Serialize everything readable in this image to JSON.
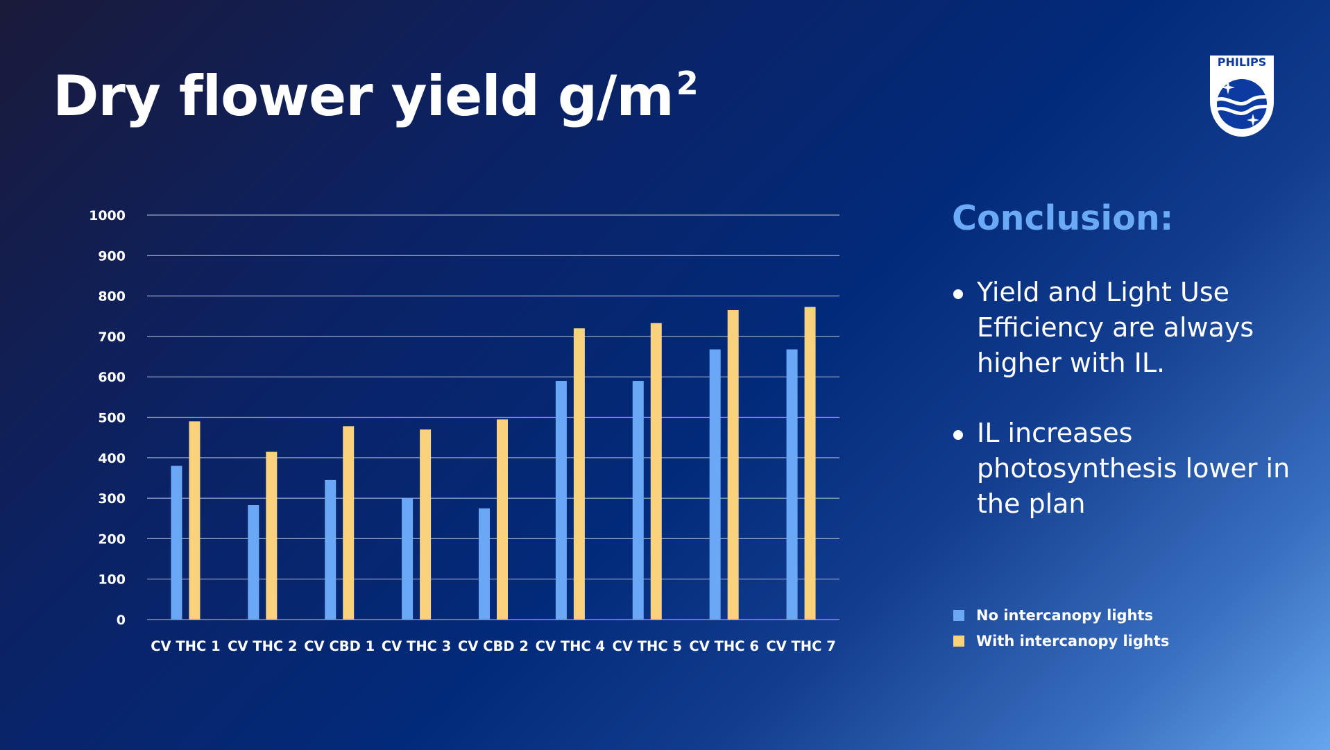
{
  "slide": {
    "title": "Dry flower yield g/m",
    "title_superscript": "2",
    "logo": {
      "wordmark": "PHILIPS",
      "icon": "philips-shield-logo-icon"
    },
    "conclusion": {
      "heading": "Conclusion:",
      "bullets": [
        "Yield and Light Use Efficiency are always higher with IL.",
        "IL increases photosynthesis lower in the plan"
      ]
    },
    "colors": {
      "series_no_il": "#6aa8f5",
      "series_with_il": "#fbd27c",
      "gridline": "#9aa8c8",
      "conclusion_heading": "#6aaaf6"
    }
  },
  "chart_data": {
    "type": "bar",
    "title": "Dry flower yield g/m2",
    "categories": [
      "CV THC 1",
      "CV THC 2",
      "CV CBD 1",
      "CV THC 3",
      "CV CBD 2",
      "CV THC 4",
      "CV THC 5",
      "CV THC 6",
      "CV THC 7"
    ],
    "series": [
      {
        "name": "No intercanopy lights",
        "values": [
          380,
          283,
          345,
          300,
          275,
          590,
          590,
          668,
          668
        ]
      },
      {
        "name": "With intercanopy lights",
        "values": [
          490,
          415,
          478,
          470,
          495,
          720,
          733,
          765,
          773
        ]
      }
    ],
    "ylim": [
      0,
      1000
    ],
    "yticks": [
      0,
      100,
      200,
      300,
      400,
      500,
      600,
      700,
      800,
      900,
      1000
    ],
    "grid": true,
    "legend_position": "right"
  }
}
